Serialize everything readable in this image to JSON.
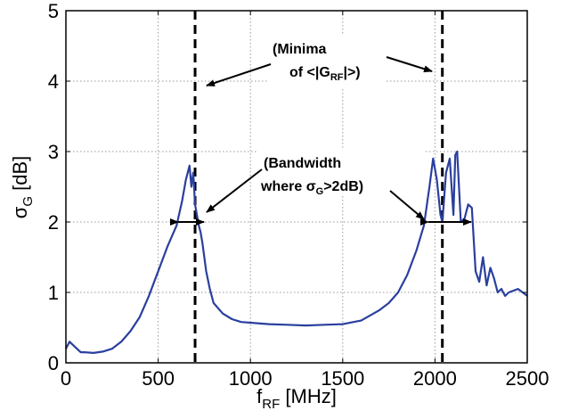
{
  "chart_data": {
    "type": "line",
    "xlabel": {
      "main": "f",
      "sub": "RF",
      "unit": " [MHz]"
    },
    "ylabel": {
      "main": "σ",
      "sub": "G",
      "unit": " [dB]"
    },
    "xlim": [
      0,
      2500
    ],
    "ylim": [
      0,
      5
    ],
    "xticks": [
      0,
      500,
      1000,
      1500,
      2000,
      2500
    ],
    "yticks": [
      0,
      1,
      2,
      3,
      4,
      5
    ],
    "grid": true,
    "colors": {
      "series": "#2a3f9e",
      "vlines": "#000000",
      "grid": "#9a9a9a"
    },
    "series": [
      {
        "x": [
          0,
          20,
          40,
          60,
          80,
          100,
          150,
          200,
          250,
          300,
          350,
          400,
          450,
          500,
          550,
          600,
          630,
          650,
          670,
          680,
          690,
          700,
          710,
          720,
          730,
          740,
          760,
          780,
          800,
          850,
          900,
          950,
          1000,
          1100,
          1200,
          1300,
          1400,
          1500,
          1600,
          1700,
          1750,
          1800,
          1850,
          1900,
          1940,
          1970,
          1990,
          2010,
          2030,
          2040,
          2060,
          2080,
          2100,
          2110,
          2120,
          2140,
          2160,
          2180,
          2200,
          2220,
          2240,
          2260,
          2280,
          2300,
          2320,
          2340,
          2360,
          2380,
          2400,
          2450,
          2500
        ],
        "y": [
          0.2,
          0.3,
          0.25,
          0.2,
          0.15,
          0.15,
          0.14,
          0.16,
          0.2,
          0.3,
          0.45,
          0.65,
          0.95,
          1.3,
          1.65,
          1.95,
          2.3,
          2.6,
          2.8,
          2.5,
          2.7,
          2.25,
          2.1,
          1.95,
          1.85,
          1.7,
          1.3,
          1.05,
          0.85,
          0.7,
          0.62,
          0.58,
          0.57,
          0.55,
          0.54,
          0.53,
          0.54,
          0.55,
          0.6,
          0.75,
          0.85,
          1.0,
          1.25,
          1.6,
          1.95,
          2.5,
          2.9,
          2.6,
          2.1,
          2.0,
          2.7,
          2.9,
          2.1,
          2.95,
          3.0,
          2.0,
          2.05,
          2.25,
          2.2,
          1.3,
          1.15,
          1.5,
          1.1,
          1.35,
          1.2,
          1.0,
          1.05,
          0.95,
          1.0,
          1.05,
          0.95
        ]
      }
    ],
    "vlines": [
      700,
      2040
    ],
    "annotations": [
      {
        "lines": [
          "(Minima",
          "of <|G",
          "RF",
          "|>)"
        ]
      },
      {
        "lines": [
          "(Bandwidth",
          "where σ",
          "G",
          ">2dB)"
        ]
      }
    ]
  }
}
